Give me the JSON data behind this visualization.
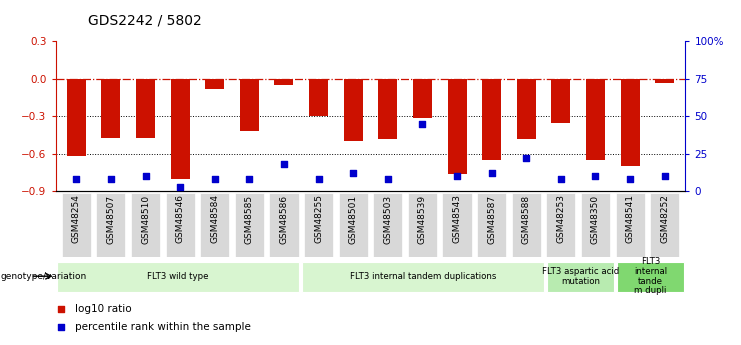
{
  "title": "GDS2242 / 5802",
  "samples": [
    "GSM48254",
    "GSM48507",
    "GSM48510",
    "GSM48546",
    "GSM48584",
    "GSM48585",
    "GSM48586",
    "GSM48255",
    "GSM48501",
    "GSM48503",
    "GSM48539",
    "GSM48543",
    "GSM48587",
    "GSM48588",
    "GSM48253",
    "GSM48350",
    "GSM48541",
    "GSM48252"
  ],
  "log10_ratio": [
    -0.62,
    -0.47,
    -0.47,
    -0.8,
    -0.08,
    -0.42,
    -0.05,
    -0.3,
    -0.5,
    -0.48,
    -0.31,
    -0.76,
    -0.65,
    -0.48,
    -0.35,
    -0.65,
    -0.7,
    -0.03
  ],
  "percentile_rank": [
    8,
    8,
    10,
    3,
    8,
    8,
    18,
    8,
    12,
    8,
    45,
    10,
    12,
    22,
    8,
    10,
    8,
    10
  ],
  "bar_color": "#CC1100",
  "dot_color": "#0000CC",
  "ylim_left": [
    -0.9,
    0.3
  ],
  "ylim_right": [
    0,
    100
  ],
  "yticks_left": [
    -0.9,
    -0.6,
    -0.3,
    0,
    0.3
  ],
  "yticks_right": [
    0,
    25,
    50,
    75,
    100
  ],
  "ytick_labels_right": [
    "0",
    "25",
    "50",
    "75",
    "100%"
  ],
  "groups": [
    {
      "label": "FLT3 wild type",
      "start": 0,
      "end": 7,
      "color": "#d8f5d0"
    },
    {
      "label": "FLT3 internal tandem duplications",
      "start": 7,
      "end": 14,
      "color": "#d8f5d0"
    },
    {
      "label": "FLT3 aspartic acid\nmutation",
      "start": 14,
      "end": 16,
      "color": "#b8ebb0"
    },
    {
      "label": "FLT3\ninternal\ntande\nm dupli",
      "start": 16,
      "end": 18,
      "color": "#80d870"
    }
  ],
  "genotype_label": "genotype/variation",
  "legend_items": [
    {
      "label": "log10 ratio",
      "color": "#CC1100"
    },
    {
      "label": "percentile rank within the sample",
      "color": "#0000CC"
    }
  ],
  "xtick_bg": "#d8d8d8"
}
